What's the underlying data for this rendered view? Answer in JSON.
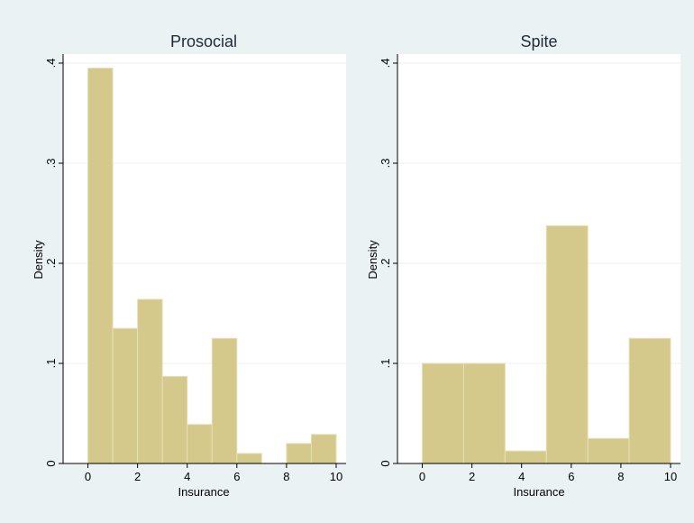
{
  "style": {
    "background_outer": "#eaf2f3",
    "plot_background": "#ffffff",
    "bar_fill": "#d4c98a",
    "bar_stroke": "#e6dfb8",
    "grid_color": "#eaf2f3",
    "axis_color": "#000000",
    "title_color": "#1e2b37"
  },
  "chart_data": [
    {
      "type": "bar",
      "subtype": "histogram",
      "title": "Prosocial",
      "xlabel": "Insurance",
      "ylabel": "Density",
      "xlim": [
        -1,
        10.4
      ],
      "ylim": [
        0,
        0.4
      ],
      "x_ticks": [
        0,
        2,
        4,
        6,
        8,
        10
      ],
      "y_ticks": [
        0,
        0.1,
        0.2,
        0.3,
        0.4
      ],
      "y_tick_labels": [
        "0",
        ".1",
        ".2",
        ".3",
        ".4"
      ],
      "grid": true,
      "bins": [
        {
          "x0": 0,
          "x1": 1,
          "value": 0.395
        },
        {
          "x0": 1,
          "x1": 2,
          "value": 0.135
        },
        {
          "x0": 2,
          "x1": 3,
          "value": 0.164
        },
        {
          "x0": 3,
          "x1": 4,
          "value": 0.087
        },
        {
          "x0": 4,
          "x1": 5,
          "value": 0.039
        },
        {
          "x0": 5,
          "x1": 6,
          "value": 0.125
        },
        {
          "x0": 6,
          "x1": 7,
          "value": 0.01
        },
        {
          "x0": 7,
          "x1": 8,
          "value": 0.0
        },
        {
          "x0": 8,
          "x1": 9,
          "value": 0.02
        },
        {
          "x0": 9,
          "x1": 10,
          "value": 0.029
        }
      ]
    },
    {
      "type": "bar",
      "subtype": "histogram",
      "title": "Spite",
      "xlabel": "Insurance",
      "ylabel": "Density",
      "xlim": [
        -1,
        10.4
      ],
      "ylim": [
        0,
        0.4
      ],
      "x_ticks": [
        0,
        2,
        4,
        6,
        8,
        10
      ],
      "y_ticks": [
        0,
        0.1,
        0.2,
        0.3,
        0.4
      ],
      "y_tick_labels": [
        "0",
        ".1",
        ".2",
        ".3",
        ".4"
      ],
      "grid": true,
      "bins": [
        {
          "x0": 0,
          "x1": 1.667,
          "value": 0.1
        },
        {
          "x0": 1.667,
          "x1": 3.333,
          "value": 0.1
        },
        {
          "x0": 3.333,
          "x1": 5.0,
          "value": 0.0125
        },
        {
          "x0": 5.0,
          "x1": 6.667,
          "value": 0.2375
        },
        {
          "x0": 6.667,
          "x1": 8.333,
          "value": 0.025
        },
        {
          "x0": 8.333,
          "x1": 10,
          "value": 0.125
        }
      ]
    }
  ]
}
